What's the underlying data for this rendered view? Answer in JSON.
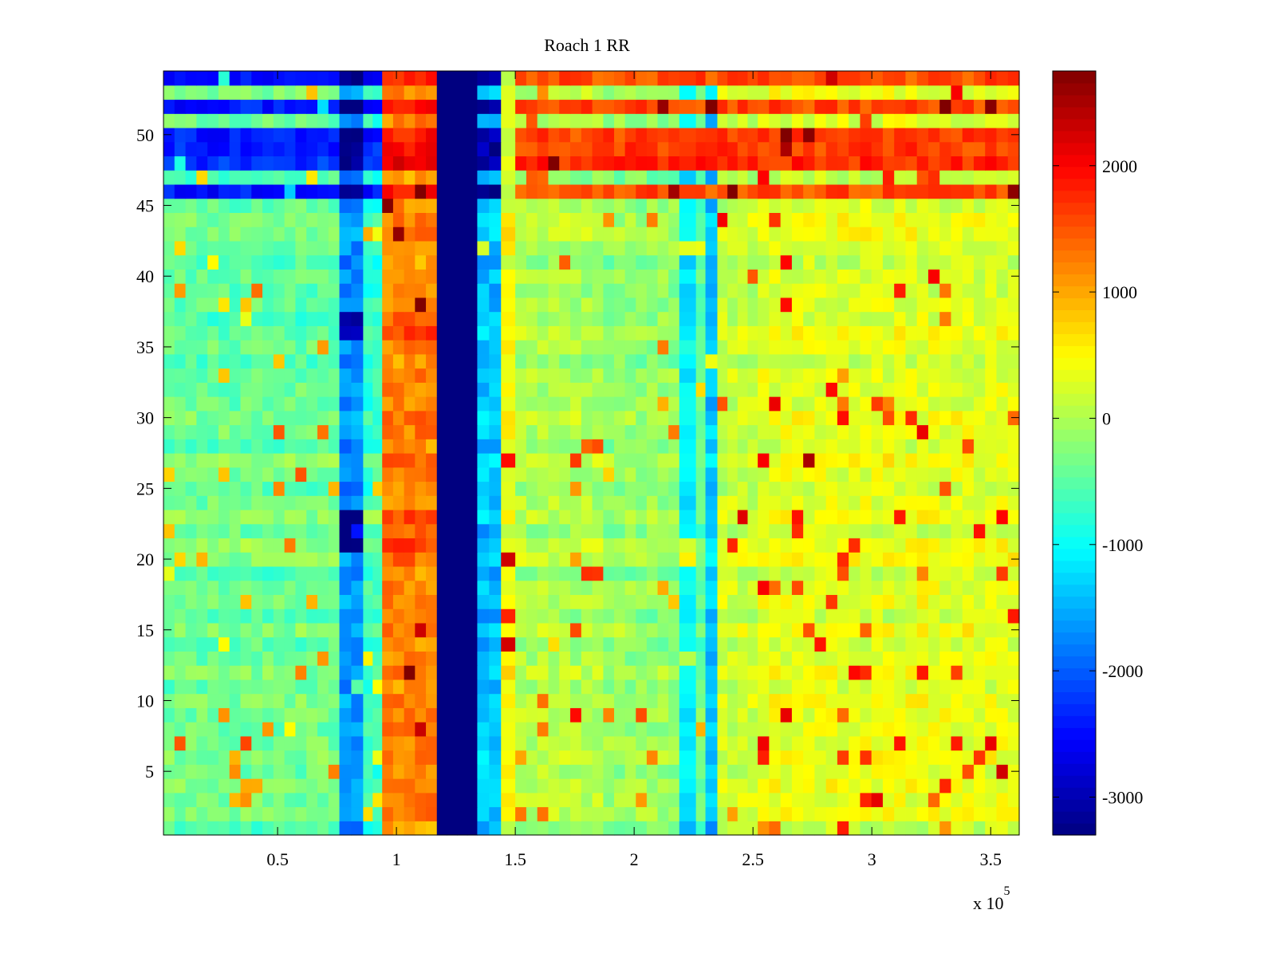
{
  "chart_data": {
    "type": "heatmap",
    "title": "Roach 1 RR",
    "xlabel": "",
    "ylabel": "",
    "x_multiplier_label": "x 10",
    "x_multiplier_exponent": "5",
    "xlim": [
      2000,
      362000
    ],
    "ylim": [
      0.5,
      54.5
    ],
    "x_ticks": [
      0.5,
      1,
      1.5,
      2,
      2.5,
      3,
      3.5
    ],
    "x_tick_labels": [
      "0.5",
      "1",
      "1.5",
      "2",
      "2.5",
      "3",
      "3.5"
    ],
    "y_ticks": [
      5,
      10,
      15,
      20,
      25,
      30,
      35,
      40,
      45,
      50
    ],
    "y_tick_labels": [
      "5",
      "10",
      "15",
      "20",
      "25",
      "30",
      "35",
      "40",
      "45",
      "50"
    ],
    "colormap": "jet",
    "clim": [
      -3300,
      2750
    ],
    "colorbar_ticks": [
      -3000,
      -2000,
      -1000,
      0,
      1000,
      2000
    ],
    "colorbar_tick_labels": [
      "-3000",
      "-2000",
      "-1000",
      "0",
      "1000",
      "2000"
    ],
    "rows": 54,
    "column_bands": [
      {
        "x_start": 2000,
        "x_end": 76000,
        "value": -400
      },
      {
        "x_start": 76000,
        "x_end": 86000,
        "value": -1700
      },
      {
        "x_start": 86000,
        "x_end": 94000,
        "value": -700
      },
      {
        "x_start": 94000,
        "x_end": 117000,
        "value": 1200
      },
      {
        "x_start": 117000,
        "x_end": 134000,
        "value": -3300
      },
      {
        "x_start": 134000,
        "x_end": 144000,
        "value": -1400
      },
      {
        "x_start": 144000,
        "x_end": 150000,
        "value": 400
      },
      {
        "x_start": 150000,
        "x_end": 187000,
        "value": 0
      },
      {
        "x_start": 187000,
        "x_end": 219000,
        "value": -150
      },
      {
        "x_start": 219000,
        "x_end": 226000,
        "value": -1100
      },
      {
        "x_start": 226000,
        "x_end": 230000,
        "value": -400
      },
      {
        "x_start": 230000,
        "x_end": 235000,
        "value": -1400
      },
      {
        "x_start": 235000,
        "x_end": 252000,
        "value": 150
      },
      {
        "x_start": 252000,
        "x_end": 362000,
        "value": 300
      }
    ],
    "row_groups": [
      {
        "rows": [
          54,
          52,
          50,
          49,
          48,
          46
        ],
        "value_left": -2300,
        "value_right": 1700
      },
      {
        "rows": [
          37,
          36
        ],
        "value_left": -600,
        "value_right": 700
      },
      {
        "rows": [
          21,
          22,
          23
        ],
        "value_left": -300,
        "value_right": 300
      }
    ]
  }
}
